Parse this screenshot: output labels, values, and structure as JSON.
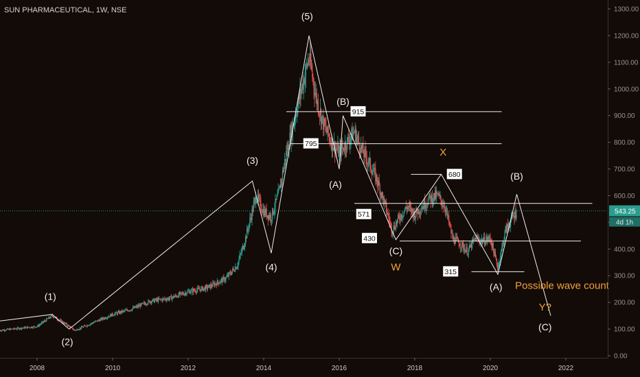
{
  "title": "SUN PHARMACEUTICAL, 1W, NSE",
  "chart_data": {
    "type": "candlestick",
    "title": "SUN PHARMACEUTICAL, 1W, NSE",
    "x_range": [
      2007.0,
      2023.5
    ],
    "ylim": [
      0,
      1300
    ],
    "y_ticks": [
      0,
      100,
      200,
      300,
      400,
      500,
      600,
      700,
      800,
      900,
      1000,
      1100,
      1200,
      1300
    ],
    "y_tick_labels": [
      "0.00",
      "100.00",
      "200.00",
      "300.00",
      "400.00",
      "500.00",
      "600.00",
      "700.00",
      "800.00",
      "900.00",
      "1000.00",
      "1100.00",
      "1200.00",
      "1300.00"
    ],
    "x_ticks": [
      2008,
      2010,
      2012,
      2014,
      2016,
      2018,
      2020,
      2022
    ],
    "x_tick_labels": [
      "2008",
      "2010",
      "2012",
      "2014",
      "2016",
      "2018",
      "2020",
      "2022"
    ],
    "last_price": 543.25,
    "last_price_label": "543.25",
    "countdown_label": "4d 1h",
    "colors": {
      "up": "#26a69a",
      "down": "#ef5350",
      "line": "#f0f0f0",
      "orange": "#f5a03a",
      "price_tag": "#2a9d8f"
    },
    "price_path": [
      [
        2007.0,
        95
      ],
      [
        2008.0,
        110
      ],
      [
        2008.4,
        150
      ],
      [
        2008.8,
        115
      ],
      [
        2009.0,
        95
      ],
      [
        2009.5,
        125
      ],
      [
        2010.0,
        155
      ],
      [
        2010.5,
        175
      ],
      [
        2011.0,
        205
      ],
      [
        2011.5,
        215
      ],
      [
        2012.0,
        240
      ],
      [
        2012.5,
        255
      ],
      [
        2013.0,
        290
      ],
      [
        2013.3,
        340
      ],
      [
        2013.5,
        430
      ],
      [
        2013.8,
        600
      ],
      [
        2014.0,
        540
      ],
      [
        2014.2,
        520
      ],
      [
        2014.4,
        610
      ],
      [
        2014.6,
        760
      ],
      [
        2014.8,
        880
      ],
      [
        2015.0,
        1000
      ],
      [
        2015.2,
        1120
      ],
      [
        2015.4,
        960
      ],
      [
        2015.6,
        860
      ],
      [
        2015.8,
        800
      ],
      [
        2016.0,
        760
      ],
      [
        2016.2,
        800
      ],
      [
        2016.4,
        840
      ],
      [
        2016.6,
        770
      ],
      [
        2016.8,
        720
      ],
      [
        2017.0,
        660
      ],
      [
        2017.2,
        570
      ],
      [
        2017.4,
        470
      ],
      [
        2017.6,
        520
      ],
      [
        2017.8,
        560
      ],
      [
        2018.0,
        530
      ],
      [
        2018.2,
        560
      ],
      [
        2018.4,
        590
      ],
      [
        2018.6,
        600
      ],
      [
        2018.8,
        560
      ],
      [
        2019.0,
        440
      ],
      [
        2019.2,
        420
      ],
      [
        2019.4,
        390
      ],
      [
        2019.6,
        440
      ],
      [
        2019.8,
        430
      ],
      [
        2020.0,
        440
      ],
      [
        2020.2,
        330
      ],
      [
        2020.4,
        470
      ],
      [
        2020.6,
        520
      ],
      [
        2020.7,
        543
      ]
    ],
    "wave_lines": [
      {
        "name": "impulse",
        "points": [
          [
            2007.0,
            130
          ],
          [
            2008.4,
            155
          ],
          [
            2008.85,
            100
          ],
          [
            2013.7,
            655
          ],
          [
            2014.2,
            385
          ],
          [
            2015.2,
            1200
          ],
          [
            2016.0,
            700
          ],
          [
            2016.1,
            900
          ],
          [
            2017.5,
            435
          ],
          [
            2018.7,
            680
          ],
          [
            2020.2,
            305
          ],
          [
            2020.7,
            605
          ],
          [
            2021.6,
            150
          ]
        ]
      }
    ],
    "levels": [
      {
        "value": 915,
        "label": "915",
        "x_from": 2014.6,
        "x_to": 2020.3
      },
      {
        "value": 795,
        "label": "795",
        "x_from": 2014.7,
        "x_to": 2020.3
      },
      {
        "value": 680,
        "label": "680",
        "x_from": 2017.9,
        "x_to": 2018.7
      },
      {
        "value": 571,
        "label": "571",
        "x_from": 2016.4,
        "x_to": 2022.7
      },
      {
        "value": 430,
        "label": "430",
        "x_from": 2017.6,
        "x_to": 2022.4
      },
      {
        "value": 315,
        "label": "315",
        "x_from": 2019.5,
        "x_to": 2020.9
      }
    ],
    "annotations": [
      {
        "text": "(1)",
        "x": 2008.35,
        "y": 210,
        "color": "white"
      },
      {
        "text": "(2)",
        "x": 2008.8,
        "y": 40,
        "color": "white"
      },
      {
        "text": "(3)",
        "x": 2013.7,
        "y": 720,
        "color": "white"
      },
      {
        "text": "(4)",
        "x": 2014.2,
        "y": 320,
        "color": "white"
      },
      {
        "text": "(5)",
        "x": 2015.15,
        "y": 1260,
        "color": "white"
      },
      {
        "text": "(B)",
        "x": 2016.1,
        "y": 940,
        "color": "white"
      },
      {
        "text": "(A)",
        "x": 2015.9,
        "y": 630,
        "color": "white"
      },
      {
        "text": "(C)",
        "x": 2017.5,
        "y": 380,
        "color": "white"
      },
      {
        "text": "W",
        "x": 2017.5,
        "y": 320,
        "color": "orange"
      },
      {
        "text": "X",
        "x": 2018.75,
        "y": 750,
        "color": "orange"
      },
      {
        "text": "(B)",
        "x": 2020.7,
        "y": 660,
        "color": "white"
      },
      {
        "text": "(A)",
        "x": 2020.15,
        "y": 245,
        "color": "white"
      },
      {
        "text": "Possible wave count",
        "x": 2021.9,
        "y": 250,
        "color": "orange"
      },
      {
        "text": "Y?",
        "x": 2021.45,
        "y": 170,
        "color": "orange"
      },
      {
        "text": "(C)",
        "x": 2021.45,
        "y": 95,
        "color": "white"
      }
    ]
  }
}
